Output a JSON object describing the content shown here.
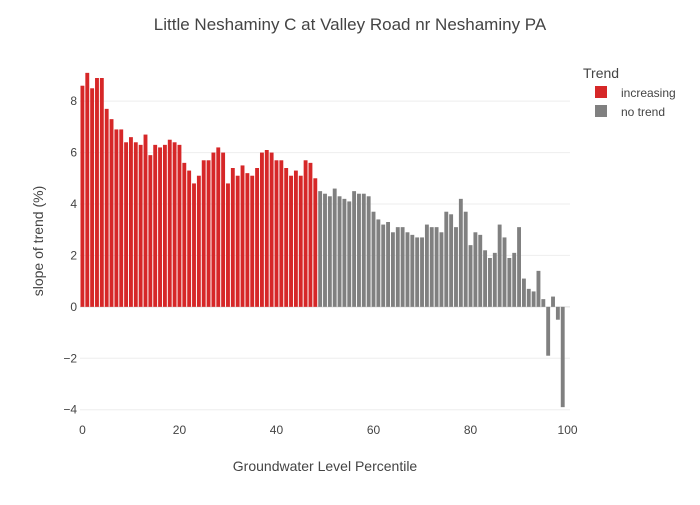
{
  "chart_data": {
    "type": "bar",
    "title": "Little Neshaminy C at Valley Road nr Neshaminy PA",
    "xlabel": "Groundwater Level Percentile",
    "ylabel": "slope of trend (%)",
    "xlim": [
      -0.5,
      100.5
    ],
    "ylim": [
      -4.4,
      9.6
    ],
    "x_ticks": [
      0,
      20,
      40,
      60,
      80,
      100
    ],
    "y_ticks": [
      -4,
      -2,
      0,
      2,
      4,
      6,
      8
    ],
    "grid": true,
    "legend": {
      "title": "Trend",
      "position": "top-right"
    },
    "series": [
      {
        "name": "increasing",
        "color": "#d62728",
        "x": [
          0,
          1,
          2,
          3,
          4,
          5,
          6,
          7,
          8,
          9,
          10,
          11,
          12,
          13,
          14,
          15,
          16,
          17,
          18,
          19,
          20,
          21,
          22,
          23,
          24,
          25,
          26,
          27,
          28,
          29,
          30,
          31,
          32,
          33,
          34,
          35,
          36,
          37,
          38,
          39,
          40,
          41,
          42,
          43,
          44,
          45,
          46,
          47,
          48
        ],
        "values": [
          8.6,
          9.1,
          8.5,
          8.9,
          8.9,
          7.7,
          7.3,
          6.9,
          6.9,
          6.4,
          6.6,
          6.4,
          6.3,
          6.7,
          5.9,
          6.3,
          6.2,
          6.3,
          6.5,
          6.4,
          6.3,
          5.6,
          5.3,
          4.8,
          5.1,
          5.7,
          5.7,
          6.0,
          6.2,
          6.0,
          4.8,
          5.4,
          5.1,
          5.5,
          5.2,
          5.1,
          5.4,
          6.0,
          6.1,
          6.0,
          5.7,
          5.7,
          5.4,
          5.1,
          5.3,
          5.1,
          5.7,
          5.6,
          5.0
        ]
      },
      {
        "name": "no trend",
        "color": "#808080",
        "x": [
          49,
          50,
          51,
          52,
          53,
          54,
          55,
          56,
          57,
          58,
          59,
          60,
          61,
          62,
          63,
          64,
          65,
          66,
          67,
          68,
          69,
          70,
          71,
          72,
          73,
          74,
          75,
          76,
          77,
          78,
          79,
          80,
          81,
          82,
          83,
          84,
          85,
          86,
          87,
          88,
          89,
          90,
          91,
          92,
          93,
          94,
          95,
          96,
          97,
          98,
          99,
          100
        ],
        "values": [
          4.5,
          4.4,
          4.3,
          4.6,
          4.3,
          4.2,
          4.1,
          4.5,
          4.4,
          4.4,
          4.3,
          3.7,
          3.4,
          3.2,
          3.3,
          2.9,
          3.1,
          3.1,
          2.9,
          2.8,
          2.7,
          2.7,
          3.2,
          3.1,
          3.1,
          2.9,
          3.7,
          3.6,
          3.1,
          4.2,
          3.7,
          2.4,
          2.9,
          2.8,
          2.2,
          1.9,
          2.1,
          3.2,
          2.7,
          1.9,
          2.1,
          3.1,
          1.1,
          0.7,
          0.6,
          1.4,
          0.3,
          -1.9,
          0.4,
          -0.5,
          -3.9,
          0.0
        ]
      }
    ]
  }
}
